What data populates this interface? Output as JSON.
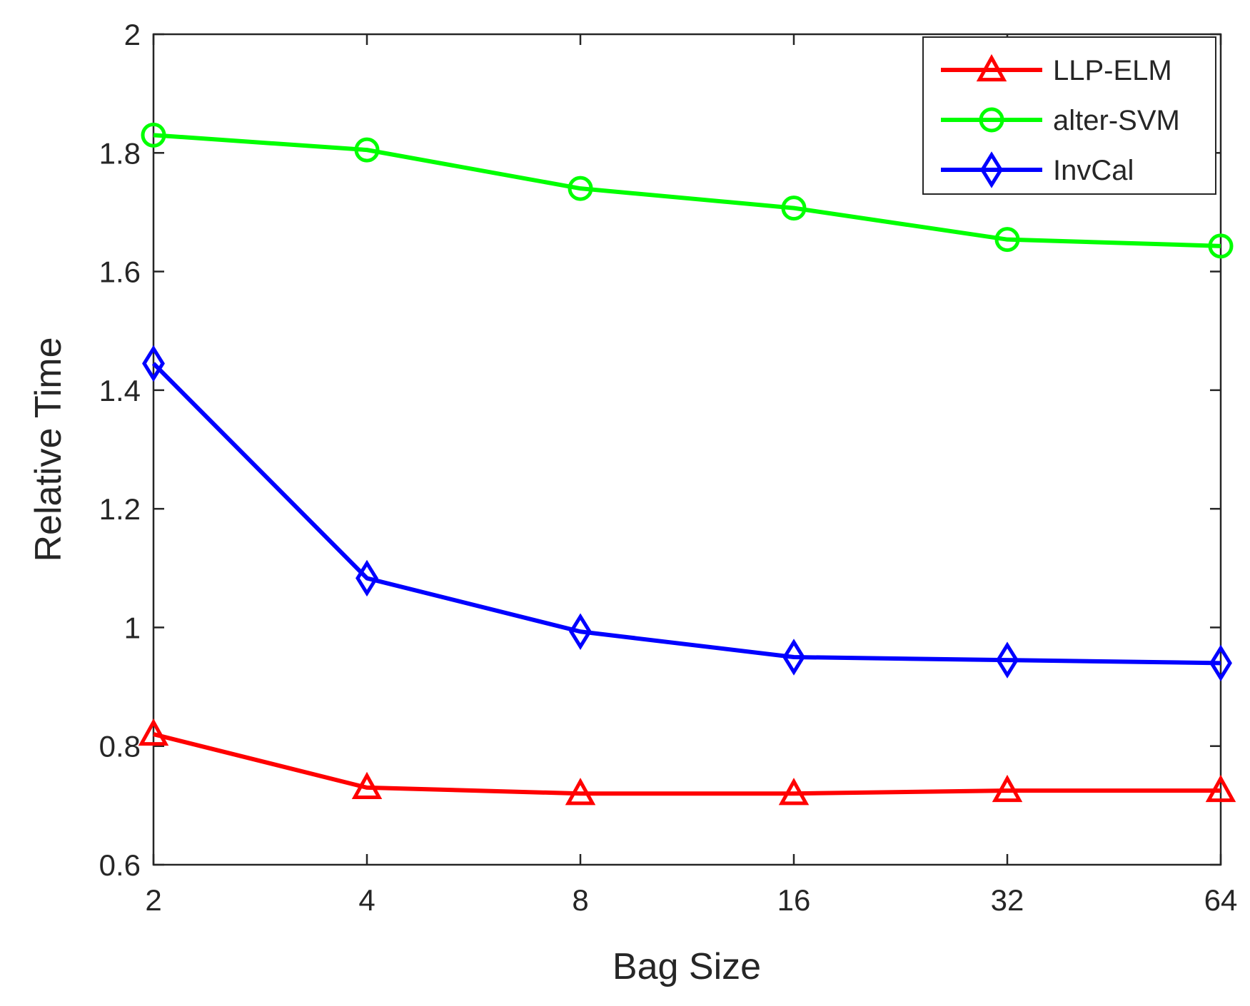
{
  "chart_data": {
    "type": "line",
    "title": "",
    "xlabel": "Bag Size",
    "ylabel": "Relative Time",
    "categories": [
      "2",
      "4",
      "8",
      "16",
      "32",
      "64"
    ],
    "yticks": [
      "0.6",
      "0.8",
      "1",
      "1.2",
      "1.4",
      "1.6",
      "1.8",
      "2"
    ],
    "ylim": [
      0.6,
      2.0
    ],
    "grid": false,
    "legend_position": "top-right",
    "series": [
      {
        "name": "LLP-ELM",
        "color": "#ff0000",
        "marker": "triangle",
        "values": [
          0.82,
          0.73,
          0.72,
          0.72,
          0.725,
          0.725
        ]
      },
      {
        "name": "alter-SVM",
        "color": "#00ff00",
        "marker": "circle",
        "values": [
          1.83,
          1.805,
          1.74,
          1.707,
          1.654,
          1.643
        ]
      },
      {
        "name": "InvCal",
        "color": "#0000ff",
        "marker": "diamond",
        "values": [
          1.445,
          1.083,
          0.993,
          0.95,
          0.945,
          0.94
        ]
      }
    ]
  }
}
